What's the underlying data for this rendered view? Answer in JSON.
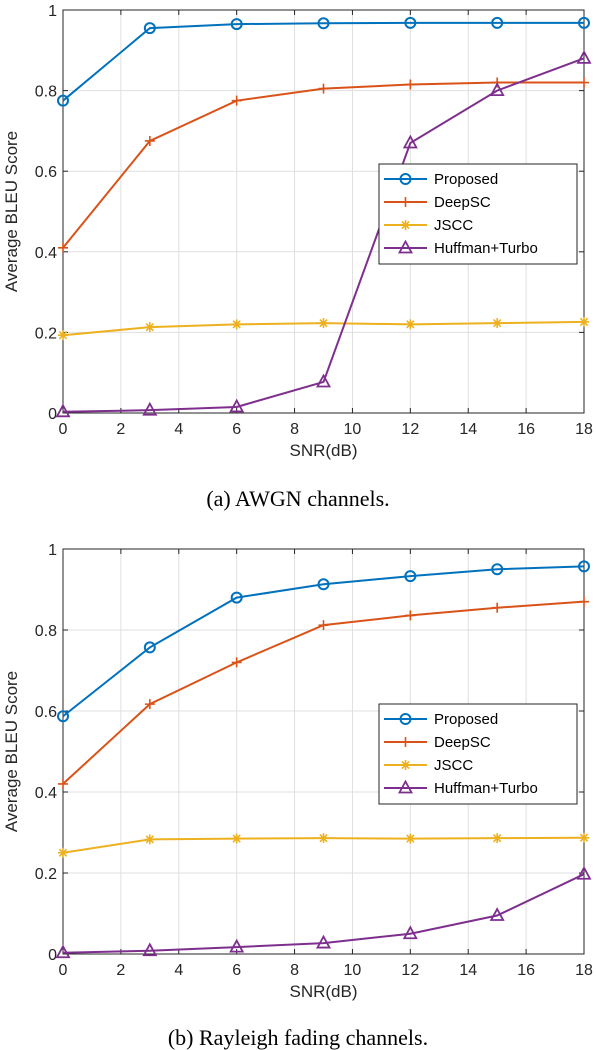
{
  "chart_data": [
    {
      "type": "line",
      "title": "",
      "caption": "(a)  AWGN channels.",
      "xlabel": "SNR(dB)",
      "ylabel": "Average BLEU Score",
      "xlim": [
        0,
        18
      ],
      "ylim": [
        0,
        1
      ],
      "xticks": [
        "0",
        "2",
        "4",
        "6",
        "8",
        "10",
        "12",
        "14",
        "16",
        "18"
      ],
      "yticks": [
        "0",
        "0.2",
        "0.4",
        "0.6",
        "0.8",
        "1"
      ],
      "grid": true,
      "legend_position": "middle-right",
      "x": [
        0,
        3,
        6,
        9,
        12,
        15,
        18
      ],
      "series": [
        {
          "name": "Proposed",
          "color": "#0072BD",
          "marker": "circle",
          "values": [
            0.775,
            0.955,
            0.965,
            0.967,
            0.968,
            0.968,
            0.968
          ]
        },
        {
          "name": "DeepSC",
          "color": "#D95319",
          "marker": "plus",
          "values": [
            0.41,
            0.675,
            0.775,
            0.805,
            0.815,
            0.82,
            0.82
          ]
        },
        {
          "name": "JSCC",
          "color": "#EDB120",
          "marker": "asterisk",
          "values": [
            0.193,
            0.213,
            0.22,
            0.223,
            0.22,
            0.223,
            0.226
          ]
        },
        {
          "name": "Huffman+Turbo",
          "color": "#7E2F8E",
          "marker": "triangle",
          "values": [
            0.003,
            0.007,
            0.015,
            0.077,
            0.67,
            0.8,
            0.88
          ]
        }
      ]
    },
    {
      "type": "line",
      "title": "",
      "caption": "(b)  Rayleigh fading channels.",
      "xlabel": "SNR(dB)",
      "ylabel": "Average BLEU Score",
      "xlim": [
        0,
        18
      ],
      "ylim": [
        0,
        1
      ],
      "xticks": [
        "0",
        "2",
        "4",
        "6",
        "8",
        "10",
        "12",
        "14",
        "16",
        "18"
      ],
      "yticks": [
        "0",
        "0.2",
        "0.4",
        "0.6",
        "0.8",
        "1"
      ],
      "grid": true,
      "legend_position": "middle-right",
      "x": [
        0,
        3,
        6,
        9,
        12,
        15,
        18
      ],
      "series": [
        {
          "name": "Proposed",
          "color": "#0072BD",
          "marker": "circle",
          "values": [
            0.587,
            0.757,
            0.88,
            0.913,
            0.933,
            0.95,
            0.957
          ]
        },
        {
          "name": "DeepSC",
          "color": "#D95319",
          "marker": "plus",
          "values": [
            0.42,
            0.617,
            0.72,
            0.812,
            0.836,
            0.855,
            0.87
          ]
        },
        {
          "name": "JSCC",
          "color": "#EDB120",
          "marker": "asterisk",
          "values": [
            0.25,
            0.283,
            0.285,
            0.286,
            0.285,
            0.286,
            0.287
          ]
        },
        {
          "name": "Huffman+Turbo",
          "color": "#7E2F8E",
          "marker": "triangle",
          "values": [
            0.003,
            0.008,
            0.017,
            0.027,
            0.05,
            0.095,
            0.197
          ]
        }
      ]
    }
  ]
}
